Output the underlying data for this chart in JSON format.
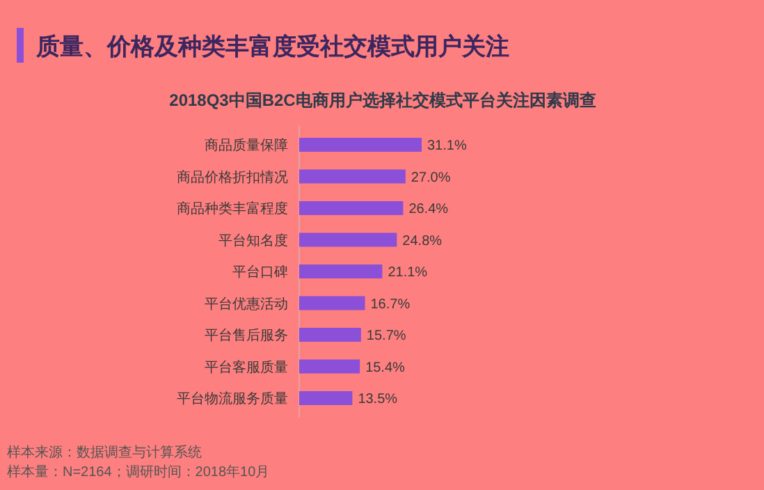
{
  "chart_data": {
    "type": "bar",
    "orientation": "horizontal",
    "title": "质量、价格及种类丰富度受社交模式用户关注",
    "subtitle": "2018Q3中国B2C电商用户选择社交模式平台关注因素调查",
    "categories": [
      "商品质量保障",
      "商品价格折扣情况",
      "商品种类丰富程度",
      "平台知名度",
      "平台口碑",
      "平台优惠活动",
      "平台售后服务",
      "平台客服质量",
      "平台物流服务质量"
    ],
    "values": [
      31.1,
      27.0,
      26.4,
      24.8,
      21.1,
      16.7,
      15.7,
      15.4,
      13.5
    ],
    "value_labels": [
      "31.1%",
      "27.0%",
      "26.4%",
      "24.8%",
      "21.1%",
      "16.7%",
      "15.7%",
      "15.4%",
      "13.5%"
    ],
    "color": "#8b4fd8",
    "annotations": [
      "样本来源：数据调查与计算系统",
      "样本量：N=2164；调研时间：2018年10月"
    ]
  }
}
